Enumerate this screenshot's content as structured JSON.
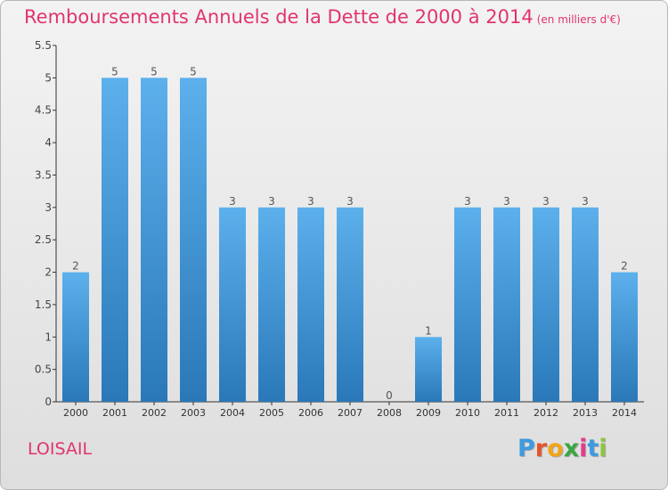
{
  "chart_data": {
    "type": "bar",
    "title": "Remboursements Annuels de la Dette de 2000 à 2014",
    "subtitle": "(en milliers d'€)",
    "xlabel": "",
    "ylabel": "",
    "categories": [
      "2000",
      "2001",
      "2002",
      "2003",
      "2004",
      "2005",
      "2006",
      "2007",
      "2008",
      "2009",
      "2010",
      "2011",
      "2012",
      "2013",
      "2014"
    ],
    "values": [
      2,
      5,
      5,
      5,
      3,
      3,
      3,
      3,
      0,
      1,
      3,
      3,
      3,
      3,
      2
    ],
    "data_labels": [
      "2",
      "5",
      "5",
      "5",
      "3",
      "3",
      "3",
      "3",
      "0",
      "1",
      "3",
      "3",
      "3",
      "3",
      "2"
    ],
    "ylim": [
      0,
      5.5
    ],
    "yticks": [
      0,
      0.5,
      1,
      1.5,
      2,
      2.5,
      3,
      3.5,
      4,
      4.5,
      5,
      5.5
    ],
    "ytick_labels": [
      "0",
      "0.5",
      "1",
      "1.5",
      "2",
      "2.5",
      "3",
      "3.5",
      "4",
      "4.5",
      "5",
      "5.5"
    ],
    "grid": false,
    "legend": "none",
    "colors": {
      "bar_top": "#5cb0ec",
      "bar_bottom": "#2a78b8",
      "axis": "#333333"
    }
  },
  "place_name": "LOISAIL",
  "logo": {
    "letters": [
      "P",
      "r",
      "o",
      "x",
      "i",
      "t",
      "i"
    ],
    "colors": [
      "#3d9be0",
      "#e8532b",
      "#f2a51a",
      "#3aa742",
      "#e33b8c",
      "#3d9be0",
      "#8cc63e"
    ]
  }
}
